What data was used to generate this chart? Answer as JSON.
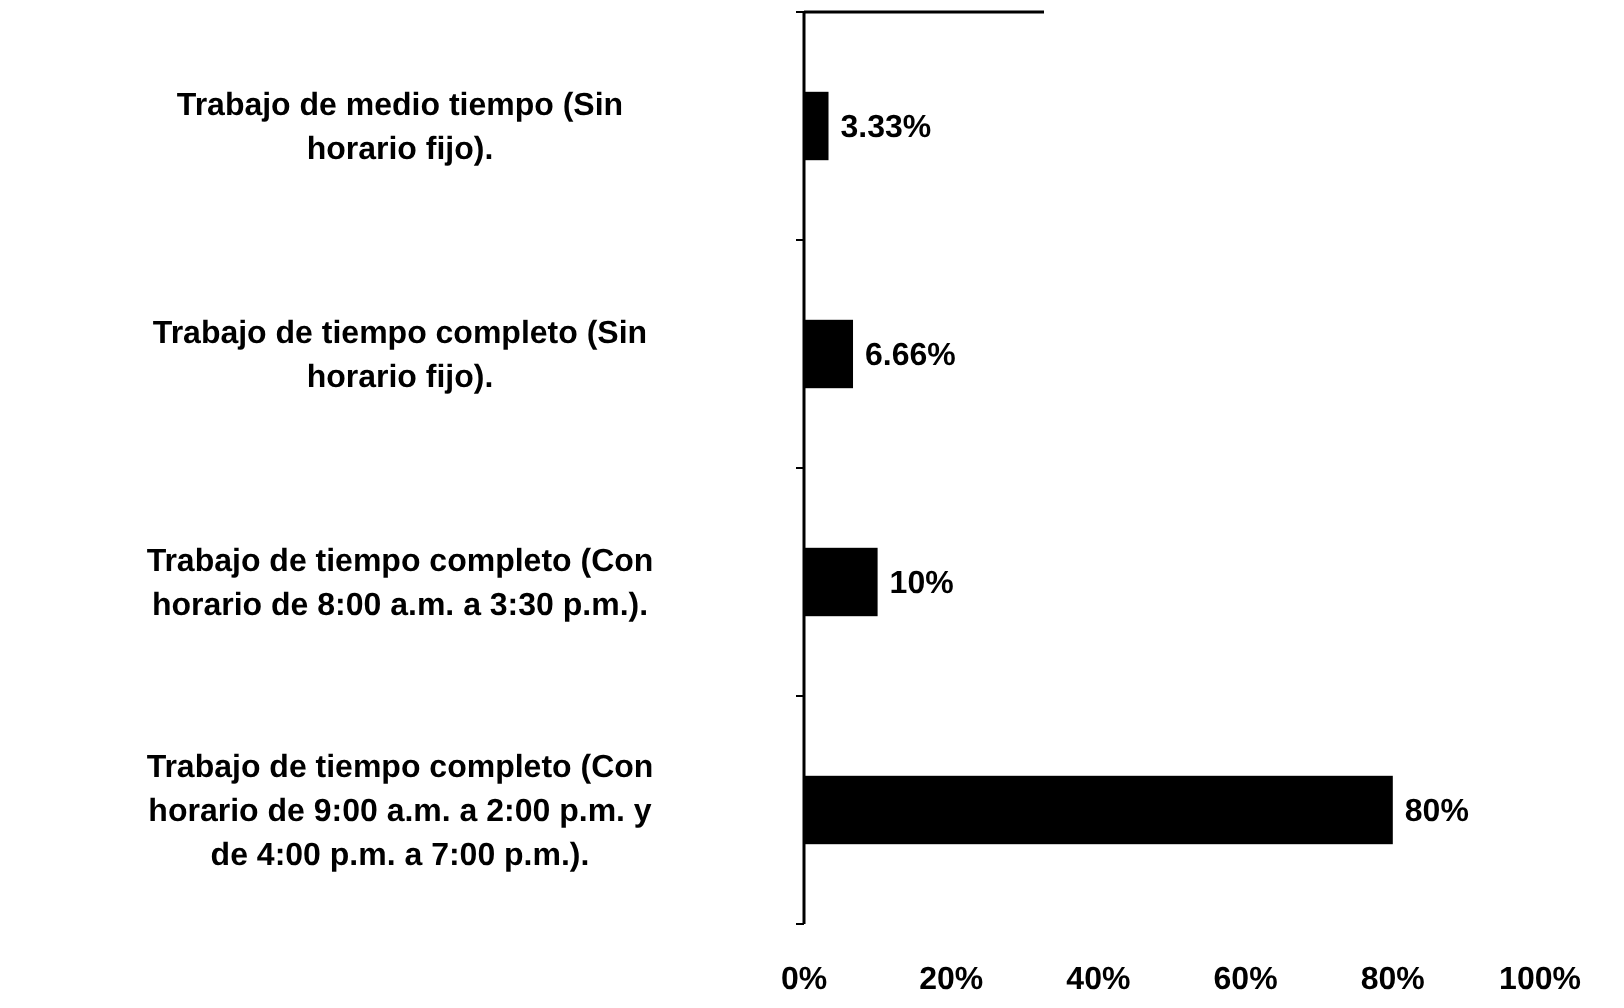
{
  "chart_data": {
    "type": "bar",
    "orientation": "horizontal",
    "categories": [
      "Trabajo de medio tiempo (Sin horario fijo).",
      "Trabajo de tiempo completo (Sin horario fijo).",
      "Trabajo de tiempo completo (Con horario de 8:00 a.m. a 3:30 p.m.).",
      "Trabajo de tiempo completo (Con horario de 9:00 a.m. a 2:00 p.m. y de 4:00 p.m. a 7:00 p.m.)."
    ],
    "values": [
      3.33,
      6.66,
      10,
      80
    ],
    "value_labels": [
      "3.33%",
      "6.66%",
      "10%",
      "80%"
    ],
    "color": "#000000",
    "xlim": [
      0,
      100
    ],
    "xticks": [
      {
        "value": 0,
        "label": "0%"
      },
      {
        "value": 20,
        "label": "20%"
      },
      {
        "value": 40,
        "label": "40%"
      },
      {
        "value": 60,
        "label": "60%"
      },
      {
        "value": 80,
        "label": "80%"
      },
      {
        "value": 100,
        "label": "100%"
      }
    ],
    "grid": false
  }
}
